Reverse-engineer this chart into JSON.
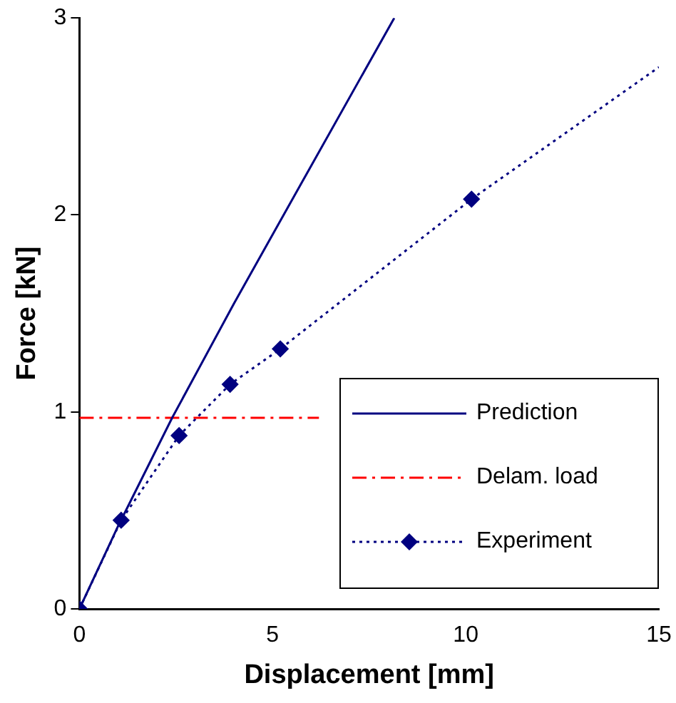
{
  "chart_data": {
    "type": "line",
    "xlabel": "Displacement [mm]",
    "ylabel": "Force [kN]",
    "xlim": [
      0,
      15
    ],
    "xticks": [
      0,
      5,
      10,
      15
    ],
    "ylim": [
      0,
      3
    ],
    "yticks": [
      0,
      1,
      2,
      3
    ],
    "grid": false,
    "legend": "bottom right",
    "series": [
      {
        "name": "Prediction",
        "color": "#000080",
        "x": [
          0,
          1,
          2.4,
          4,
          6,
          8.15
        ],
        "values": [
          0,
          0.42,
          0.97,
          1.55,
          2.25,
          3
        ],
        "line_style": "solid",
        "marker": "none"
      },
      {
        "name": "Delam. load",
        "color": "#ff0000",
        "x": [
          0,
          6.2
        ],
        "values": [
          0.97,
          0.97
        ],
        "line_style": "dashed",
        "marker": "none"
      },
      {
        "name": "Experiment",
        "color": "#000080",
        "x": [
          0,
          1.08,
          2.58,
          3.9,
          5.2,
          10.15
        ],
        "values": [
          0,
          0.45,
          0.88,
          1.14,
          1.32,
          2.08
        ],
        "line_style": "dotted",
        "marker": "diamond"
      },
      {
        "color": "#000080",
        "x": [
          10.15,
          15
        ],
        "values": [
          2.08,
          2.75
        ],
        "line_style": "dotted",
        "marker": "none"
      }
    ]
  }
}
